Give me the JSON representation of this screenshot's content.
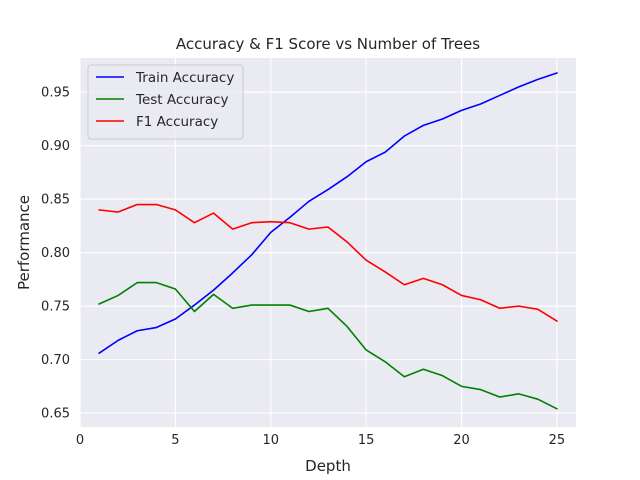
{
  "chart_data": {
    "type": "line",
    "title": "Accuracy & F1 Score vs Number of Trees",
    "xlabel": "Depth",
    "ylabel": "Performance",
    "xlim": [
      0,
      26
    ],
    "ylim": [
      0.637,
      0.982
    ],
    "xticks": [
      0,
      5,
      10,
      15,
      20,
      25
    ],
    "yticks": [
      0.65,
      0.7,
      0.75,
      0.8,
      0.85,
      0.9,
      0.95
    ],
    "grid": true,
    "legend_position": "top-left",
    "x": [
      1,
      2,
      3,
      4,
      5,
      6,
      7,
      8,
      9,
      10,
      11,
      12,
      13,
      14,
      15,
      16,
      17,
      18,
      19,
      20,
      21,
      22,
      23,
      24,
      25
    ],
    "series": [
      {
        "name": "Train Accuracy",
        "color": "#0000ff",
        "values": [
          0.706,
          0.718,
          0.727,
          0.73,
          0.738,
          0.751,
          0.765,
          0.781,
          0.798,
          0.819,
          0.833,
          0.848,
          0.859,
          0.871,
          0.885,
          0.894,
          0.909,
          0.919,
          0.925,
          0.933,
          0.939,
          0.947,
          0.955,
          0.962,
          0.968
        ]
      },
      {
        "name": "Test Accuracy",
        "color": "#008000",
        "values": [
          0.752,
          0.76,
          0.772,
          0.772,
          0.766,
          0.745,
          0.761,
          0.748,
          0.751,
          0.751,
          0.751,
          0.745,
          0.748,
          0.731,
          0.709,
          0.698,
          0.684,
          0.691,
          0.685,
          0.675,
          0.672,
          0.665,
          0.668,
          0.663,
          0.654
        ]
      },
      {
        "name": "F1 Accuracy",
        "color": "#ff0000",
        "values": [
          0.84,
          0.838,
          0.845,
          0.845,
          0.84,
          0.828,
          0.837,
          0.822,
          0.828,
          0.829,
          0.828,
          0.822,
          0.824,
          0.81,
          0.793,
          0.782,
          0.77,
          0.776,
          0.77,
          0.76,
          0.756,
          0.748,
          0.75,
          0.747,
          0.736
        ]
      }
    ]
  },
  "colors": {
    "plot_background": "#eaeaf2",
    "grid": "#ffffff",
    "text": "#262626"
  }
}
